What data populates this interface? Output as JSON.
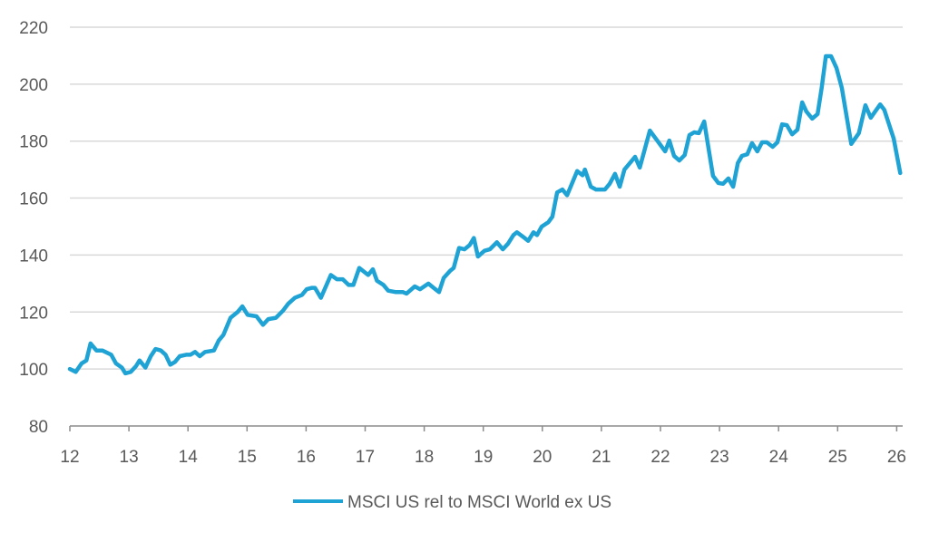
{
  "chart_data": {
    "type": "line",
    "title": "",
    "xlabel": "",
    "ylabel": "",
    "xlim": [
      12,
      26.1
    ],
    "ylim": [
      80,
      220
    ],
    "x_ticks": [
      12,
      13,
      14,
      15,
      16,
      17,
      18,
      19,
      20,
      21,
      22,
      23,
      24,
      25,
      26
    ],
    "x_tick_labels": [
      "12",
      "13",
      "14",
      "15",
      "16",
      "17",
      "18",
      "19",
      "20",
      "21",
      "22",
      "23",
      "24",
      "25",
      "26"
    ],
    "y_ticks": [
      80,
      100,
      120,
      140,
      160,
      180,
      200,
      220
    ],
    "y_tick_labels": [
      "80",
      "100",
      "120",
      "140",
      "160",
      "180",
      "200",
      "220"
    ],
    "grid": "horizontal",
    "legend_position": "bottom",
    "colors": {
      "line": "#1fa3d5",
      "grid": "#d9d9d9",
      "axis": "#8c8c8c",
      "text": "#595959"
    },
    "series": [
      {
        "name": "MSCI US rel to MSCI World ex US",
        "x": [
          12.0,
          12.1,
          12.2,
          12.28,
          12.35,
          12.45,
          12.55,
          12.7,
          12.78,
          12.88,
          12.94,
          13.03,
          13.12,
          13.18,
          13.28,
          13.37,
          13.45,
          13.54,
          13.62,
          13.7,
          13.78,
          13.86,
          13.97,
          14.04,
          14.12,
          14.2,
          14.29,
          14.44,
          14.52,
          14.6,
          14.72,
          14.84,
          14.92,
          15.01,
          15.16,
          15.27,
          15.36,
          15.49,
          15.61,
          15.7,
          15.81,
          15.93,
          16.01,
          16.1,
          16.15,
          16.25,
          16.42,
          16.52,
          16.62,
          16.72,
          16.8,
          16.9,
          17.05,
          17.13,
          17.2,
          17.31,
          17.39,
          17.52,
          17.64,
          17.7,
          17.84,
          17.93,
          18.07,
          18.16,
          18.25,
          18.33,
          18.44,
          18.5,
          18.59,
          18.68,
          18.77,
          18.84,
          18.91,
          19.02,
          19.11,
          19.23,
          19.33,
          19.42,
          19.51,
          19.57,
          19.7,
          19.76,
          19.85,
          19.91,
          19.99,
          20.1,
          20.17,
          20.25,
          20.34,
          20.42,
          20.53,
          20.59,
          20.68,
          20.72,
          20.82,
          20.91,
          21.06,
          21.14,
          21.23,
          21.31,
          21.39,
          21.49,
          21.57,
          21.65,
          21.82,
          22.08,
          22.15,
          22.23,
          22.32,
          22.41,
          22.49,
          22.57,
          22.65,
          22.74,
          22.89,
          22.98,
          23.06,
          23.15,
          23.23,
          23.31,
          23.38,
          23.47,
          23.55,
          23.64,
          23.72,
          23.8,
          23.9,
          23.98,
          24.06,
          24.14,
          24.23,
          24.32,
          24.4,
          24.47,
          24.57,
          24.66,
          24.73,
          24.8,
          24.89,
          24.98,
          25.07,
          25.23,
          25.36,
          25.47,
          25.56,
          25.72,
          25.79,
          25.95,
          26.06
        ],
        "values": [
          100,
          99,
          102,
          103,
          109,
          106.5,
          106.5,
          105,
          102,
          100.5,
          98.5,
          99,
          101,
          103,
          100.5,
          104.5,
          107,
          106.5,
          105,
          101.5,
          102.5,
          104.5,
          105,
          105,
          106,
          104.5,
          106,
          106.5,
          110,
          112,
          118,
          120,
          122,
          119,
          118.5,
          115.5,
          117.5,
          118,
          120.5,
          123,
          125,
          126,
          128,
          128.5,
          128.5,
          125,
          133,
          131.5,
          131.5,
          129.5,
          129.5,
          135.5,
          133,
          135,
          131,
          129.5,
          127.5,
          127,
          127,
          126.5,
          129,
          128,
          130,
          128.5,
          127,
          132,
          134.5,
          135.5,
          142.5,
          142,
          143.5,
          146,
          139.5,
          141.5,
          142,
          144.5,
          142,
          144,
          147,
          148,
          146,
          145,
          148,
          147,
          150,
          151.5,
          153.5,
          162,
          163,
          161,
          166.5,
          169.5,
          168,
          170,
          164,
          163,
          163,
          165,
          168.5,
          164,
          170,
          172.5,
          174.5,
          170.7,
          183.7,
          176.4,
          180.2,
          174.8,
          173.2,
          175.1,
          182.1,
          183.1,
          182.8,
          186.9,
          167.8,
          165.3,
          165,
          166.9,
          164,
          172.3,
          174.8,
          175.4,
          179.3,
          176.4,
          179.6,
          179.6,
          178,
          179.6,
          185.9,
          185.6,
          182.4,
          184,
          193.6,
          190.4,
          187.9,
          189.5,
          198.7,
          209.8,
          209.8,
          205.7,
          198.7,
          179,
          182.8,
          192.6,
          188.2,
          192.9,
          191,
          180.9,
          168.8
        ]
      }
    ]
  }
}
